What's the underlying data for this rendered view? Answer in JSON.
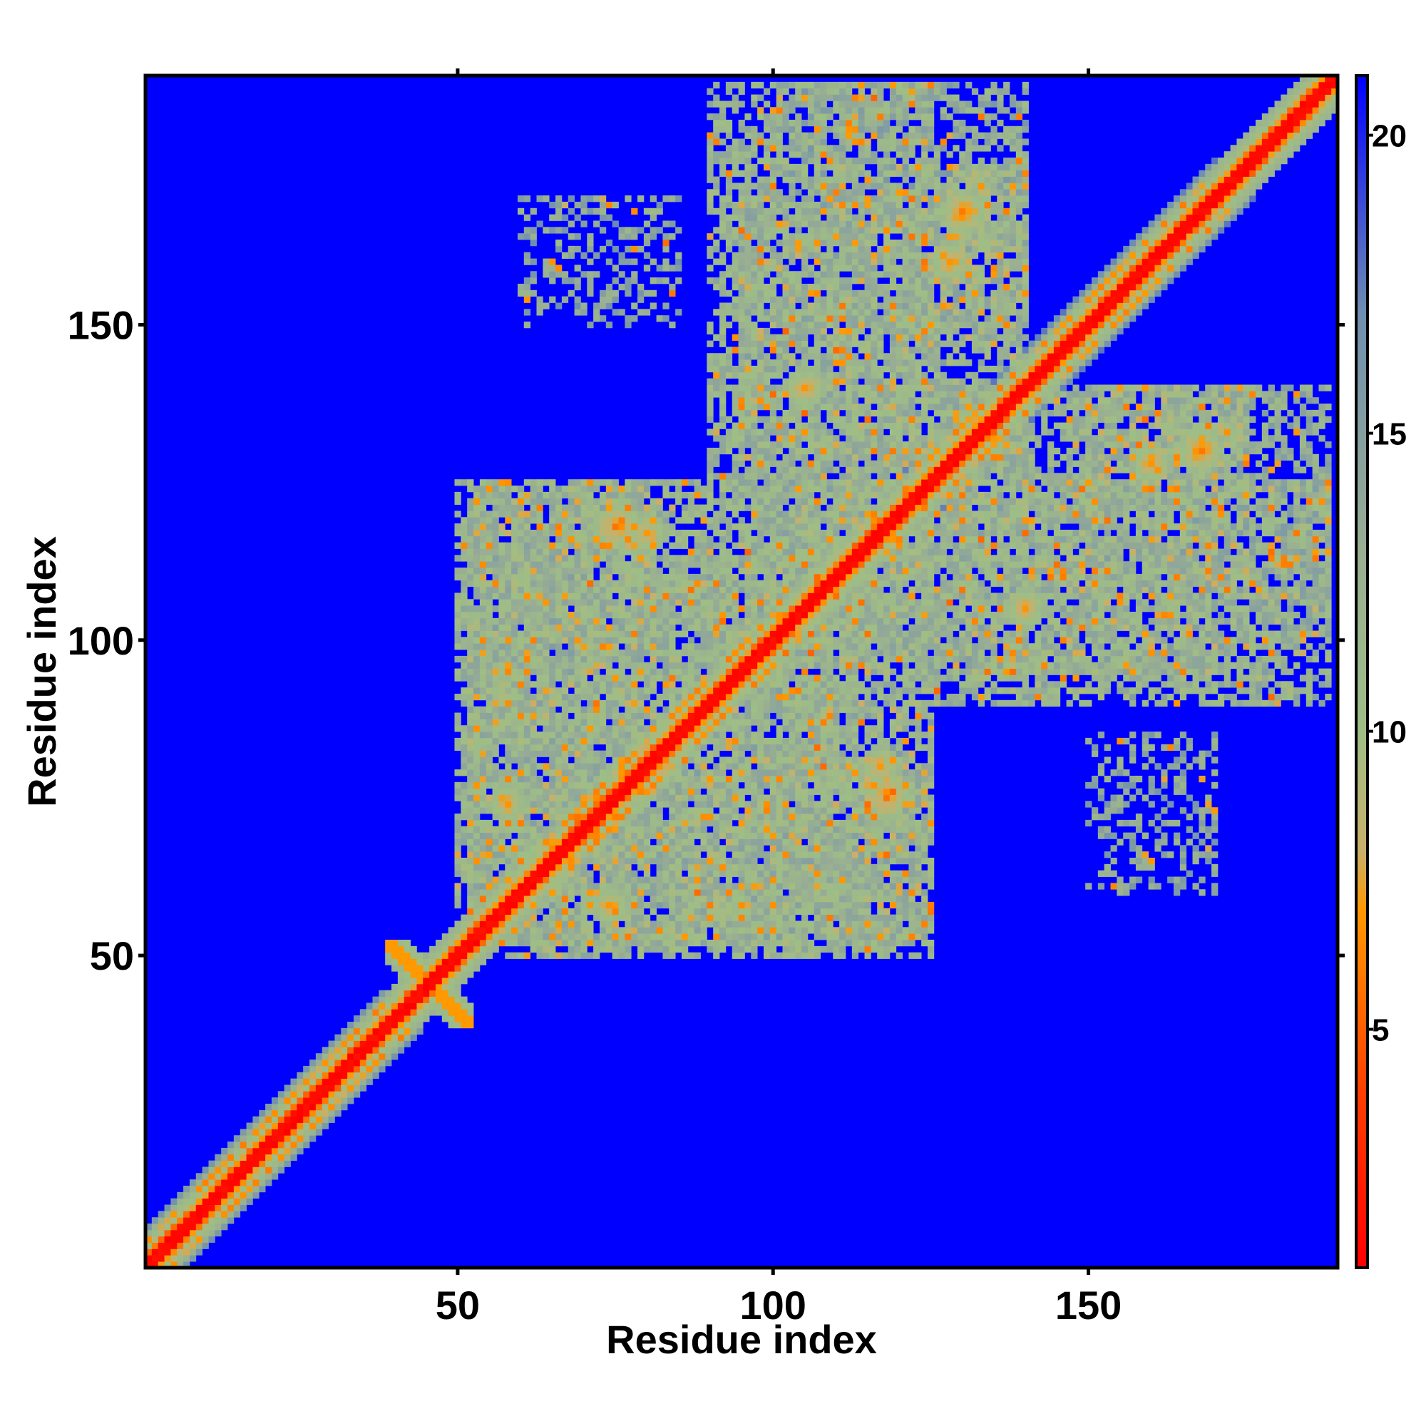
{
  "chart_data": {
    "type": "heatmap",
    "title": "",
    "xlabel": "Residue index",
    "ylabel": "Residue index",
    "xlim": [
      1,
      189
    ],
    "ylim": [
      1,
      189
    ],
    "x_ticks": [
      50,
      100,
      150
    ],
    "y_ticks": [
      50,
      100,
      150
    ],
    "tick_labels": {
      "x": [
        "50",
        "100",
        "150"
      ],
      "y": [
        "50",
        "100",
        "150"
      ]
    },
    "grid": false,
    "symmetric": true,
    "description_of_values": "distance matrix; low values (red) on diagonal, high values (blue) far from contacts",
    "colorbar": {
      "position": "right",
      "range": [
        1,
        21
      ],
      "ticks": [
        5,
        10,
        15,
        20
      ],
      "tick_labels": [
        "5",
        "10",
        "15",
        "20"
      ],
      "colormap": [
        {
          "value": 1,
          "color": "#ff0000"
        },
        {
          "value": 4,
          "color": "#ff4000"
        },
        {
          "value": 7,
          "color": "#ff9900"
        },
        {
          "value": 8,
          "color": "#c8b06a"
        },
        {
          "value": 10,
          "color": "#9ebe86"
        },
        {
          "value": 13,
          "color": "#9aaf92"
        },
        {
          "value": 17,
          "color": "#6f8fb0"
        },
        {
          "value": 21,
          "color": "#0000ff"
        }
      ]
    },
    "matrix_model": {
      "background_value": 21,
      "diagonal": {
        "core_value": 1,
        "band_width_residues": 1.2,
        "halo_value": 9,
        "halo_width_residues": 5
      },
      "helical_segments": [
        {
          "start": 2,
          "end": 38,
          "halo_value": 10,
          "halo_width_residues": 6
        },
        {
          "start": 60,
          "end": 100,
          "halo_value": 11,
          "halo_width_residues": 5
        },
        {
          "start": 125,
          "end": 170,
          "halo_value": 11,
          "halo_width_residues": 6
        }
      ],
      "contact_regions": [
        {
          "x": [
            39,
            52
          ],
          "y": [
            39,
            52
          ],
          "value": 7,
          "shape": "x-crossing"
        },
        {
          "x": [
            50,
            110
          ],
          "y": [
            58,
            125
          ],
          "value": 12,
          "density": 0.75
        },
        {
          "x": [
            55,
            125
          ],
          "y": [
            52,
            80
          ],
          "value": 12,
          "density": 0.7
        },
        {
          "x": [
            90,
            125
          ],
          "y": [
            120,
            188
          ],
          "value": 12,
          "density": 0.65
        },
        {
          "x": [
            110,
            170
          ],
          "y": [
            95,
            140
          ],
          "value": 12,
          "density": 0.7
        },
        {
          "x": [
            150,
            188
          ],
          "y": [
            100,
            140
          ],
          "value": 13,
          "density": 0.55
        },
        {
          "x": [
            125,
            140
          ],
          "y": [
            150,
            175
          ],
          "value": 11,
          "density": 0.7
        },
        {
          "x": [
            150,
            170
          ],
          "y": [
            60,
            85
          ],
          "value": 14,
          "density": 0.4
        }
      ],
      "hotspots": [
        {
          "x": 75,
          "y": 118,
          "value": 5
        },
        {
          "x": 80,
          "y": 82,
          "value": 6
        },
        {
          "x": 74,
          "y": 58,
          "value": 6
        },
        {
          "x": 117,
          "y": 80,
          "value": 6
        },
        {
          "x": 130,
          "y": 168,
          "value": 5
        },
        {
          "x": 160,
          "y": 128,
          "value": 6
        },
        {
          "x": 140,
          "y": 105,
          "value": 6
        },
        {
          "x": 105,
          "y": 140,
          "value": 6
        },
        {
          "x": 162,
          "y": 162,
          "value": 6
        }
      ]
    }
  }
}
